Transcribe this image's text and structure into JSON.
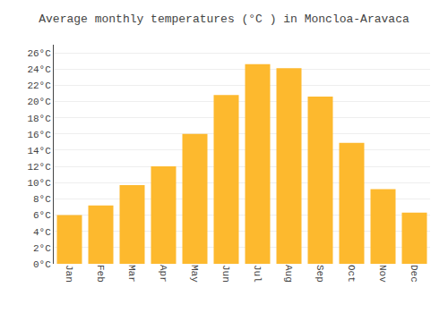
{
  "chart_data": {
    "type": "bar",
    "title": "Average monthly temperatures (°C ) in Moncloa-Aravaca",
    "categories": [
      "Jan",
      "Feb",
      "Mar",
      "Apr",
      "May",
      "Jun",
      "Jul",
      "Aug",
      "Sep",
      "Oct",
      "Nov",
      "Dec"
    ],
    "values": [
      6.0,
      7.2,
      9.7,
      12.0,
      16.0,
      20.8,
      24.6,
      24.1,
      20.6,
      14.9,
      9.2,
      6.3
    ],
    "color": "#FDB92E",
    "ylim": [
      0,
      27
    ],
    "yticks": [
      {
        "value": 0,
        "label": "0°C"
      },
      {
        "value": 2,
        "label": "2°C"
      },
      {
        "value": 4,
        "label": "4°C"
      },
      {
        "value": 6,
        "label": "6°C"
      },
      {
        "value": 8,
        "label": "8°C"
      },
      {
        "value": 10,
        "label": "10°C"
      },
      {
        "value": 12,
        "label": "12°C"
      },
      {
        "value": 14,
        "label": "14°C"
      },
      {
        "value": 16,
        "label": "16°C"
      },
      {
        "value": 18,
        "label": "18°C"
      },
      {
        "value": 20,
        "label": "20°C"
      },
      {
        "value": 22,
        "label": "22°C"
      },
      {
        "value": 24,
        "label": "24°C"
      },
      {
        "value": 26,
        "label": "26°C"
      }
    ],
    "grid": true
  }
}
